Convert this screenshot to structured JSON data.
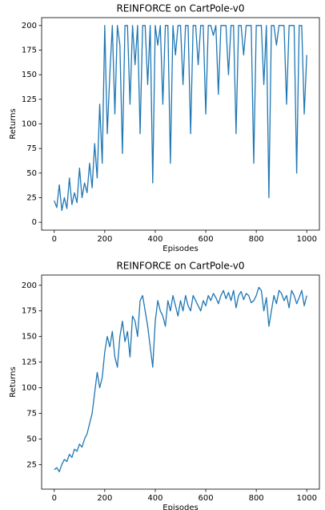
{
  "chart_data": [
    {
      "type": "line",
      "title": "REINFORCE on CartPole-v0",
      "x_label": "Episodes",
      "y_label": "Returns",
      "color": "#1f77b4",
      "x": [
        0,
        10,
        20,
        30,
        40,
        50,
        60,
        70,
        80,
        90,
        100,
        110,
        120,
        130,
        140,
        150,
        160,
        170,
        180,
        190,
        200,
        210,
        220,
        230,
        240,
        250,
        260,
        270,
        280,
        290,
        300,
        310,
        320,
        330,
        340,
        350,
        360,
        370,
        380,
        390,
        400,
        410,
        420,
        430,
        440,
        450,
        460,
        470,
        480,
        490,
        500,
        510,
        520,
        530,
        540,
        550,
        560,
        570,
        580,
        590,
        600,
        610,
        620,
        630,
        640,
        650,
        660,
        670,
        680,
        690,
        700,
        710,
        720,
        730,
        740,
        750,
        760,
        770,
        780,
        790,
        800,
        810,
        820,
        830,
        840,
        850,
        860,
        870,
        880,
        890,
        900,
        910,
        920,
        930,
        940,
        950,
        960,
        970,
        980,
        990,
        1000
      ],
      "values": [
        22,
        15,
        38,
        12,
        25,
        14,
        45,
        18,
        30,
        20,
        55,
        25,
        40,
        30,
        60,
        35,
        80,
        45,
        120,
        60,
        200,
        90,
        150,
        200,
        110,
        200,
        180,
        70,
        200,
        200,
        120,
        200,
        160,
        200,
        90,
        200,
        200,
        140,
        200,
        40,
        200,
        180,
        200,
        120,
        200,
        200,
        60,
        200,
        170,
        200,
        200,
        140,
        200,
        200,
        90,
        200,
        200,
        160,
        200,
        200,
        110,
        200,
        200,
        190,
        200,
        130,
        200,
        200,
        200,
        150,
        200,
        200,
        90,
        200,
        200,
        170,
        200,
        200,
        200,
        60,
        200,
        200,
        200,
        140,
        200,
        25,
        200,
        200,
        180,
        200,
        200,
        200,
        120,
        200,
        200,
        200,
        50,
        200,
        200,
        110,
        170
      ],
      "xlim": [
        -50,
        1050
      ],
      "ylim": [
        -8,
        208
      ],
      "xticks": [
        0,
        200,
        400,
        600,
        800,
        1000
      ],
      "yticks": [
        0,
        25,
        50,
        75,
        100,
        125,
        150,
        175,
        200
      ]
    },
    {
      "type": "line",
      "title": "REINFORCE on CartPole-v0",
      "x_label": "Episodes",
      "y_label": "Returns",
      "color": "#1f77b4",
      "x": [
        0,
        10,
        20,
        30,
        40,
        50,
        60,
        70,
        80,
        90,
        100,
        110,
        120,
        130,
        140,
        150,
        160,
        170,
        180,
        190,
        200,
        210,
        220,
        230,
        240,
        250,
        260,
        270,
        280,
        290,
        300,
        310,
        320,
        330,
        340,
        350,
        360,
        370,
        380,
        390,
        400,
        410,
        420,
        430,
        440,
        450,
        460,
        470,
        480,
        490,
        500,
        510,
        520,
        530,
        540,
        550,
        560,
        570,
        580,
        590,
        600,
        610,
        620,
        630,
        640,
        650,
        660,
        670,
        680,
        690,
        700,
        710,
        720,
        730,
        740,
        750,
        760,
        770,
        780,
        790,
        800,
        810,
        820,
        830,
        840,
        850,
        860,
        870,
        880,
        890,
        900,
        910,
        920,
        930,
        940,
        950,
        960,
        970,
        980,
        990,
        1000
      ],
      "values": [
        20,
        22,
        18,
        25,
        30,
        28,
        35,
        32,
        40,
        38,
        45,
        42,
        50,
        55,
        65,
        75,
        95,
        115,
        100,
        110,
        135,
        150,
        140,
        155,
        130,
        120,
        150,
        165,
        145,
        155,
        130,
        170,
        165,
        150,
        185,
        190,
        175,
        160,
        140,
        120,
        165,
        185,
        175,
        170,
        160,
        185,
        175,
        190,
        180,
        170,
        185,
        175,
        190,
        180,
        175,
        190,
        185,
        180,
        175,
        185,
        180,
        190,
        185,
        192,
        188,
        182,
        190,
        195,
        187,
        193,
        185,
        195,
        178,
        190,
        194,
        186,
        192,
        190,
        183,
        185,
        190,
        198,
        195,
        175,
        188,
        160,
        175,
        190,
        182,
        195,
        192,
        185,
        190,
        178,
        195,
        190,
        182,
        188,
        195,
        180,
        190
      ],
      "xlim": [
        -50,
        1050
      ],
      "ylim": [
        1,
        210
      ],
      "xticks": [
        0,
        200,
        400,
        600,
        800,
        1000
      ],
      "yticks": [
        25,
        50,
        75,
        100,
        125,
        150,
        175,
        200
      ]
    }
  ]
}
